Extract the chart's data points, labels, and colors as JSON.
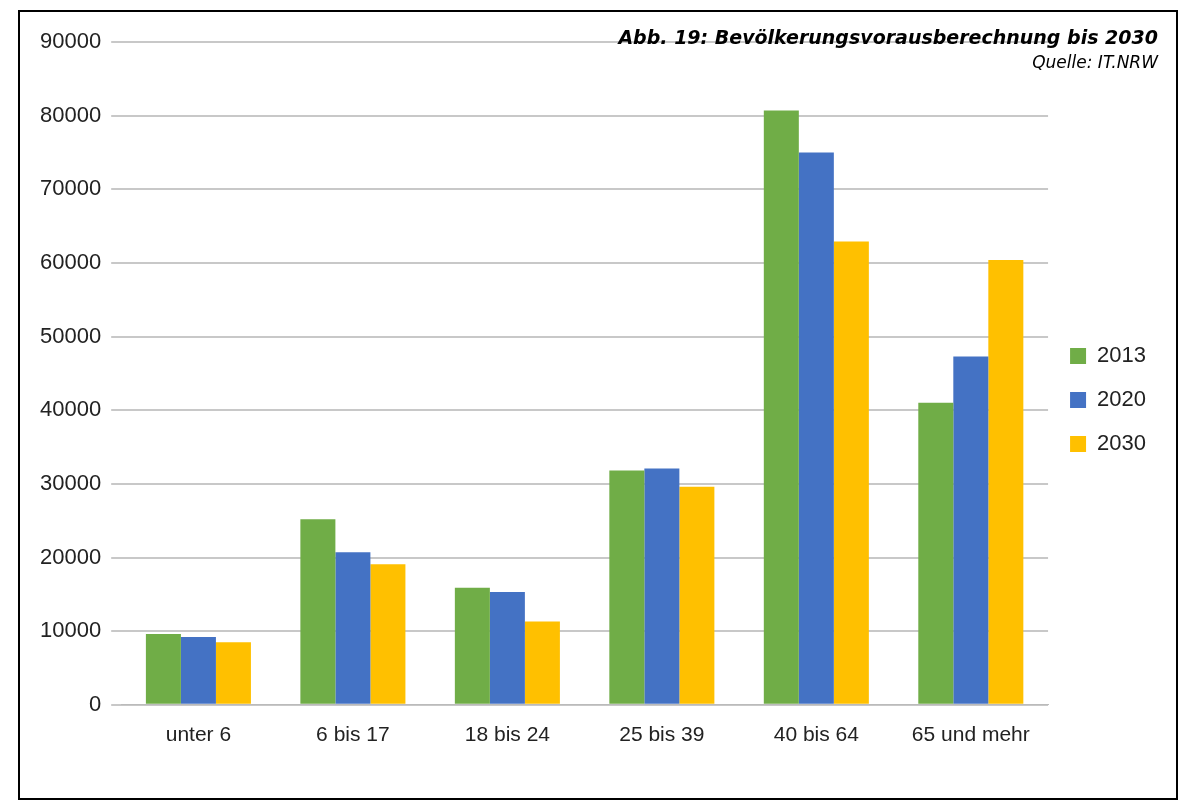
{
  "chart_data": {
    "type": "bar",
    "title": "Abb. 19: Bevölkerungsvorausberechnung bis 2030",
    "annotations": [
      "Quelle: IT.NRW"
    ],
    "categories": [
      "unter 6",
      "6 bis 17",
      "18 bis 24",
      "25 bis 39",
      "40 bis 64",
      "65 und mehr"
    ],
    "series": [
      {
        "name": "2013",
        "color": "#70ad47",
        "values": [
          9600,
          25200,
          15900,
          31800,
          80700,
          41000
        ]
      },
      {
        "name": "2020",
        "color": "#4472c4",
        "values": [
          9200,
          20700,
          15300,
          32100,
          75000,
          47300
        ]
      },
      {
        "name": "2030",
        "color": "#ffc000",
        "values": [
          8500,
          19100,
          11300,
          29600,
          62900,
          60400
        ]
      }
    ],
    "ylim": [
      0,
      90000
    ],
    "yticks": [
      0,
      10000,
      20000,
      30000,
      40000,
      50000,
      60000,
      70000,
      80000,
      90000
    ],
    "grid": "y",
    "legend": "right"
  }
}
